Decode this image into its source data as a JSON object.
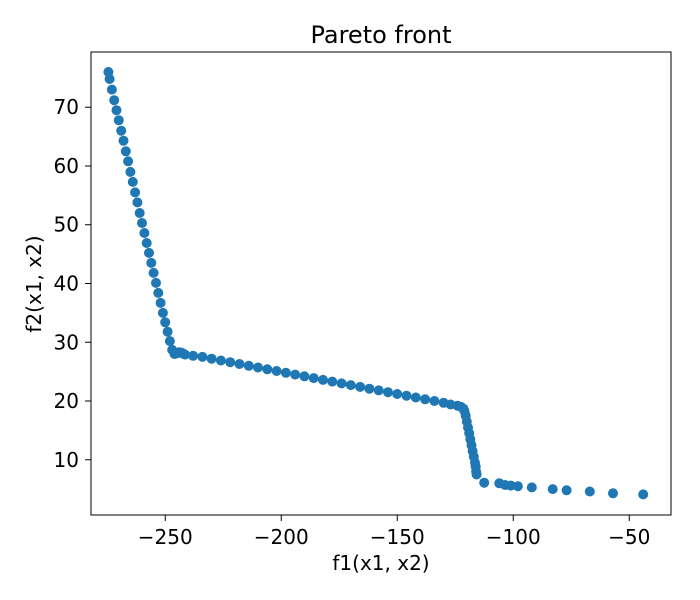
{
  "chart_data": {
    "type": "scatter",
    "title": "Pareto front",
    "xlabel": "f1(x1, x2)",
    "ylabel": "f2(x1, x2)",
    "xlim": [
      -282,
      -32
    ],
    "ylim": [
      0.6,
      79.4
    ],
    "xticks": [
      -250,
      -200,
      -150,
      -100,
      -50
    ],
    "yticks": [
      10,
      20,
      30,
      40,
      50,
      60,
      70
    ],
    "xtick_labels": [
      "−250",
      "−200",
      "−150",
      "−100",
      "−50"
    ],
    "ytick_labels": [
      "10",
      "20",
      "30",
      "40",
      "50",
      "60",
      "70"
    ],
    "grid": false,
    "marker_color": "#1f77b4",
    "series": [
      {
        "x": [
          -274.5,
          -274.0,
          -273.0,
          -272.0,
          -271.0,
          -270.0,
          -269.0,
          -268.0,
          -267.0,
          -266.0,
          -265.0,
          -264.0,
          -263.0,
          -262.0,
          -261.0,
          -260.0,
          -259.0,
          -258.0,
          -257.0,
          -256.0,
          -255.0,
          -254.0,
          -253.0,
          -252.0,
          -251.0,
          -250.0,
          -249.0,
          -248.0,
          -247.0,
          -246.0,
          -245.0,
          -244.0,
          -243.0,
          -242.5,
          -242.0,
          -241.5,
          -238.0,
          -234.0,
          -230.0,
          -226.0,
          -222.0,
          -218.0,
          -214.0,
          -210.0,
          -206.0,
          -202.0,
          -198.0,
          -194.0,
          -190.0,
          -186.0,
          -182.0,
          -178.0,
          -174.0,
          -170.0,
          -166.0,
          -162.0,
          -158.0,
          -154.0,
          -150.0,
          -146.0,
          -142.0,
          -138.0,
          -134.0,
          -130.0,
          -127.0,
          -124.0,
          -122.5,
          -121.5,
          -121.0,
          -120.5,
          -120.0,
          -119.5,
          -119.0,
          -118.5,
          -118.0,
          -117.5,
          -117.0,
          -116.5,
          -116.2,
          -116.0,
          -115.8,
          -112.5,
          -106.0,
          -103.5,
          -101.0,
          -98.0,
          -92.0,
          -83.0,
          -77.0,
          -67.0,
          -57.0,
          -44.0
        ],
        "y": [
          76.0,
          74.8,
          73.0,
          71.2,
          69.5,
          67.8,
          66.0,
          64.3,
          62.5,
          60.8,
          59.0,
          57.3,
          55.5,
          53.8,
          52.0,
          50.3,
          48.6,
          46.9,
          45.2,
          43.5,
          41.8,
          40.1,
          38.4,
          36.7,
          35.0,
          33.4,
          31.8,
          30.2,
          28.7,
          28.0,
          28.1,
          28.3,
          28.2,
          28.1,
          28.0,
          27.9,
          27.7,
          27.5,
          27.2,
          26.9,
          26.6,
          26.3,
          26.0,
          25.7,
          25.4,
          25.1,
          24.8,
          24.5,
          24.2,
          23.9,
          23.6,
          23.3,
          23.0,
          22.7,
          22.4,
          22.1,
          21.8,
          21.5,
          21.2,
          20.9,
          20.6,
          20.3,
          20.0,
          19.7,
          19.4,
          19.2,
          19.0,
          18.7,
          18.3,
          17.5,
          16.5,
          15.5,
          14.5,
          13.5,
          12.5,
          11.5,
          10.5,
          9.5,
          8.8,
          8.0,
          7.5,
          6.1,
          6.0,
          5.7,
          5.6,
          5.5,
          5.3,
          5.0,
          4.8,
          4.6,
          4.3,
          4.1
        ]
      }
    ]
  }
}
